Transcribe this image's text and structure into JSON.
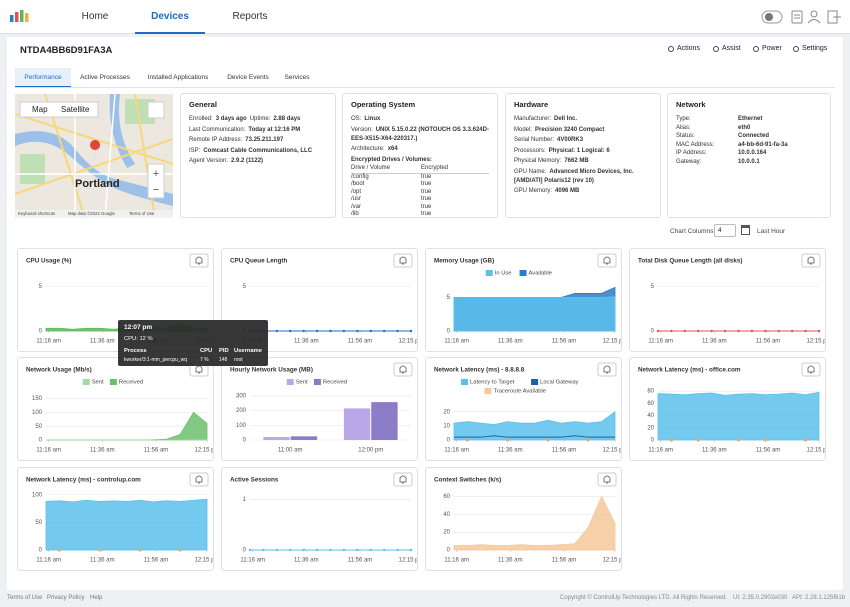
{
  "nav": {
    "tabs": [
      "Home",
      "Devices",
      "Reports"
    ],
    "active": 1
  },
  "device": {
    "name": "NTDA4BB6D91FA3A",
    "actions": [
      "Actions",
      "Assist",
      "Power",
      "Settings"
    ]
  },
  "tabs": {
    "items": [
      "Performance",
      "Active Processes",
      "Installed Applications",
      "Device Events",
      "Services"
    ],
    "active": 0
  },
  "map": {
    "buttons": [
      "Map",
      "Satellite"
    ],
    "city": "Portland",
    "attribution": [
      "Keyboard shortcuts",
      "Map data ©2022 Google",
      "Terms of Use"
    ]
  },
  "general": {
    "title": "General",
    "rows": [
      [
        "Enrolled:",
        "3 days ago",
        "Uptime:",
        "2.88 days"
      ],
      [
        "Last Communication:",
        "Today at 12:16 PM"
      ],
      [
        "Remote IP Address:",
        "73.25.211.197"
      ],
      [
        "ISP:",
        "Comcast Cable Communications, LLC"
      ],
      [
        "Agent Version:",
        "2.9.2 (1122)"
      ]
    ]
  },
  "os": {
    "title": "Operating System",
    "rows": [
      [
        "OS:",
        "Linux"
      ],
      [
        "Version:",
        "UNIX 5.15.0.22 (NOTOUCH OS 3.3.624D-EES-X515-X64-220317.)"
      ],
      [
        "Architecture:",
        "x64"
      ]
    ],
    "drives": {
      "title": "Encrypted Drives / Volumes:",
      "header": [
        "Drive / Volume",
        "Encrypted"
      ],
      "rows": [
        [
          "/config",
          "true"
        ],
        [
          "/boot",
          "true"
        ],
        [
          "/opt",
          "true"
        ],
        [
          "/usr",
          "true"
        ],
        [
          "/var",
          "true"
        ],
        [
          "/lib",
          "true"
        ],
        [
          "/etc",
          "true"
        ]
      ]
    }
  },
  "hardware": {
    "title": "Hardware",
    "rows": [
      [
        "Manufacturer:",
        "Dell Inc."
      ],
      [
        "Model:",
        "Precision 3240 Compact"
      ],
      [
        "Serial Number:",
        "4V00RK3"
      ],
      [
        "Processors:",
        "Physical: 1  Logical: 6"
      ],
      [
        "Physical Memory:",
        "7662 MB"
      ],
      [
        "GPU Name:",
        "Advanced Micro Devices, Inc. [AMD/ATI] Polaris12 (rev 10)"
      ],
      [
        "GPU Memory:",
        "4096 MB"
      ]
    ]
  },
  "network": {
    "title": "Network",
    "rows": [
      [
        "Type:",
        "Ethernet"
      ],
      [
        "Alias:",
        "eth0"
      ],
      [
        "Status:",
        "Connected"
      ],
      [
        "MAC Address:",
        "a4-bb-6d-91-fa-3a"
      ],
      [
        "IP Address:",
        "10.0.0.164"
      ],
      [
        "Gateway:",
        "10.0.0.1"
      ]
    ]
  },
  "controls": {
    "columns_label": "Chart Columns:",
    "columns": "4",
    "range": "Last Hour"
  },
  "charts": [
    {
      "type": "area",
      "title": "CPU Usage (%)",
      "ylim": [
        0,
        6.5
      ],
      "yticks": [
        0,
        5
      ],
      "xlim": [
        0,
        60
      ],
      "xticks": [
        {
          "value": 1,
          "label": "11:16 am"
        },
        {
          "value": 21,
          "label": "11:36 am"
        },
        {
          "value": 41,
          "label": "11:56 am"
        },
        {
          "value": 60,
          "label": "12:15 pm"
        }
      ],
      "x": [
        0,
        5,
        10,
        15,
        20,
        25,
        30,
        35,
        40,
        45,
        50,
        55,
        60
      ],
      "series": [
        {
          "color": "#5cb85c",
          "values": [
            0.3,
            0.3,
            0.2,
            0.3,
            0.3,
            0.2,
            0.3,
            0.3,
            0.4,
            0.3,
            0.9,
            0.3,
            0.3
          ]
        }
      ]
    },
    {
      "type": "line",
      "title": "CPU Queue Length",
      "ylim": [
        0,
        6.5
      ],
      "yticks": [
        0,
        5
      ],
      "xlim": [
        0,
        60
      ],
      "xticks": [
        {
          "value": 1,
          "label": "11:16 am"
        },
        {
          "value": 21,
          "label": "11:36 am"
        },
        {
          "value": 41,
          "label": "11:56 am"
        },
        {
          "value": 60,
          "label": "12:15 pm"
        }
      ],
      "x": [
        0,
        5,
        10,
        15,
        20,
        25,
        30,
        35,
        40,
        45,
        50,
        55,
        60
      ],
      "series": [
        {
          "color": "#1f6fbf",
          "markers": true,
          "values": [
            0,
            0,
            0,
            0,
            0,
            0,
            0,
            0,
            0,
            0,
            0,
            0,
            0
          ]
        }
      ]
    },
    {
      "type": "area",
      "title": "Memory Usage (GB)",
      "ylim": [
        0,
        7
      ],
      "yticks": [
        0,
        5
      ],
      "xlim": [
        0,
        60
      ],
      "xticks": [
        {
          "value": 1,
          "label": "11:16 am"
        },
        {
          "value": 21,
          "label": "11:36 am"
        },
        {
          "value": 41,
          "label": "11:56 am"
        },
        {
          "value": 60,
          "label": "12:15 pm"
        }
      ],
      "x": [
        0,
        5,
        10,
        15,
        20,
        25,
        30,
        35,
        40,
        45,
        50,
        55,
        60
      ],
      "series": [
        {
          "name": "In Use",
          "color": "#5bc0eb",
          "values": [
            5,
            5,
            5,
            5,
            5,
            5,
            5,
            5,
            5,
            5,
            5,
            5,
            5.1
          ]
        },
        {
          "name": "Available",
          "color": "#2a7dc9",
          "values": [
            5,
            5,
            5,
            5,
            5,
            5,
            5,
            5,
            5,
            5.6,
            5.6,
            5.6,
            6.5
          ]
        }
      ]
    },
    {
      "type": "line",
      "title": "Total Disk Queue Length (all disks)",
      "ylim": [
        0,
        6.5
      ],
      "yticks": [
        0,
        5
      ],
      "xlim": [
        0,
        60
      ],
      "xticks": [
        {
          "value": 1,
          "label": "11:16 am"
        },
        {
          "value": 21,
          "label": "11:36 am"
        },
        {
          "value": 41,
          "label": "11:56 am"
        },
        {
          "value": 60,
          "label": "12:15 pm"
        }
      ],
      "x": [
        0,
        5,
        10,
        15,
        20,
        25,
        30,
        35,
        40,
        45,
        50,
        55,
        60
      ],
      "series": [
        {
          "color": "#e0505a",
          "markers": true,
          "values": [
            0,
            0,
            0,
            0,
            0,
            0,
            0,
            0,
            0,
            0,
            0,
            0,
            0
          ]
        }
      ]
    },
    {
      "type": "area",
      "title": "Network Usage (Mb/s)",
      "ylim": [
        0,
        170
      ],
      "yticks": [
        0,
        50,
        100,
        150
      ],
      "xlim": [
        0,
        60
      ],
      "xticks": [
        {
          "value": 1,
          "label": "11:16 am"
        },
        {
          "value": 21,
          "label": "11:36 am"
        },
        {
          "value": 41,
          "label": "11:56 am"
        },
        {
          "value": 60,
          "label": "12:15 pm"
        }
      ],
      "x": [
        0,
        5,
        10,
        15,
        20,
        25,
        30,
        35,
        40,
        45,
        50,
        55,
        60
      ],
      "series": [
        {
          "name": "Sent",
          "color": "#a3d9a5",
          "values": [
            0,
            0,
            0,
            0,
            0,
            0,
            0,
            0,
            0,
            0,
            0,
            1,
            1
          ]
        },
        {
          "name": "Received",
          "color": "#6cbf6c",
          "values": [
            0,
            0,
            0,
            0,
            0,
            0,
            0,
            0,
            1,
            3,
            20,
            100,
            60
          ]
        }
      ]
    },
    {
      "type": "bar",
      "title": "Hourly Network Usage (MB)",
      "ylim": [
        0,
        320
      ],
      "yticks": [
        0,
        100,
        200,
        300
      ],
      "categories": [
        "11:00 am",
        "12:00 pm"
      ],
      "series": [
        {
          "name": "Sent",
          "color": "#b9a7e8",
          "values": [
            20,
            215
          ]
        },
        {
          "name": "Received",
          "color": "#8b7cc8",
          "values": [
            25,
            258
          ]
        }
      ]
    },
    {
      "type": "area",
      "title": "Network Latency (ms) - 8.8.8.8",
      "ylim": [
        0,
        27
      ],
      "yticks": [
        0,
        10,
        20
      ],
      "xlim": [
        0,
        60
      ],
      "xticks": [
        {
          "value": 1,
          "label": "11:16 am"
        },
        {
          "value": 21,
          "label": "11:36 am"
        },
        {
          "value": 41,
          "label": "11:56 am"
        },
        {
          "value": 60,
          "label": "12:15 pm"
        }
      ],
      "x": [
        0,
        5,
        10,
        15,
        20,
        25,
        30,
        35,
        40,
        45,
        50,
        55,
        60
      ],
      "series": [
        {
          "name": "Latency to Target",
          "color": "#5bc0eb",
          "values": [
            12,
            13,
            12,
            11,
            13,
            12,
            12,
            14,
            12,
            13,
            12,
            13,
            20
          ]
        },
        {
          "name": "Local Gateway",
          "color": "#1f5fa8",
          "kind": "line",
          "values": [
            2,
            2,
            2,
            3,
            2,
            2,
            2,
            2,
            2,
            3,
            2,
            2,
            2
          ]
        },
        {
          "name": "Traceroute Available",
          "color": "#f5c89a",
          "kind": "points",
          "values": [
            null,
            0,
            null,
            null,
            0,
            null,
            null,
            0,
            null,
            null,
            0,
            null,
            null
          ]
        }
      ]
    },
    {
      "type": "area",
      "title": "Network Latency (ms) - office.com",
      "ylim": [
        0,
        95
      ],
      "yticks": [
        0,
        20,
        40,
        60,
        80
      ],
      "xlim": [
        0,
        60
      ],
      "xticks": [
        {
          "value": 1,
          "label": "11:16 am"
        },
        {
          "value": 21,
          "label": "11:36 am"
        },
        {
          "value": 41,
          "label": "11:56 am"
        },
        {
          "value": 60,
          "label": "12:15 pm"
        }
      ],
      "x": [
        0,
        5,
        10,
        15,
        20,
        25,
        30,
        35,
        40,
        45,
        50,
        55,
        60
      ],
      "series": [
        {
          "color": "#5bc0eb",
          "values": [
            76,
            75,
            74,
            76,
            77,
            73,
            75,
            76,
            74,
            75,
            77,
            74,
            78
          ]
        },
        {
          "color": "#f5c89a",
          "kind": "points",
          "values": [
            null,
            0,
            null,
            0,
            null,
            null,
            0,
            null,
            0,
            null,
            null,
            0,
            null
          ]
        }
      ]
    },
    {
      "type": "area",
      "title": "Network Latency (ms) - controlup.com",
      "ylim": [
        0,
        105
      ],
      "yticks": [
        0,
        50,
        100
      ],
      "xlim": [
        0,
        60
      ],
      "xticks": [
        {
          "value": 1,
          "label": "11:16 am"
        },
        {
          "value": 21,
          "label": "11:36 am"
        },
        {
          "value": 41,
          "label": "11:56 am"
        },
        {
          "value": 60,
          "label": "12:15 pm"
        }
      ],
      "x": [
        0,
        5,
        10,
        15,
        20,
        25,
        30,
        35,
        40,
        45,
        50,
        55,
        60
      ],
      "series": [
        {
          "color": "#5bc0eb",
          "values": [
            88,
            89,
            87,
            90,
            88,
            89,
            88,
            90,
            87,
            89,
            88,
            90,
            92
          ]
        },
        {
          "color": "#f5c89a",
          "kind": "points",
          "values": [
            null,
            0,
            null,
            null,
            0,
            null,
            null,
            0,
            null,
            null,
            0,
            null,
            null
          ]
        }
      ]
    },
    {
      "type": "line",
      "title": "Active Sessions",
      "ylim": [
        0,
        1.15
      ],
      "yticks": [
        0,
        1
      ],
      "xlim": [
        0,
        60
      ],
      "xticks": [
        {
          "value": 1,
          "label": "11:16 am"
        },
        {
          "value": 21,
          "label": "11:36 am"
        },
        {
          "value": 41,
          "label": "11:56 am"
        },
        {
          "value": 60,
          "label": "12:15 pm"
        }
      ],
      "x": [
        0,
        5,
        10,
        15,
        20,
        25,
        30,
        35,
        40,
        45,
        50,
        55,
        60
      ],
      "series": [
        {
          "color": "#5bc0eb",
          "markers": true,
          "values": [
            0,
            0,
            0,
            0,
            0,
            0,
            0,
            0,
            0,
            0,
            0,
            0,
            0
          ]
        }
      ]
    },
    {
      "type": "area",
      "title": "Context Switches (k/s)",
      "ylim": [
        0,
        65
      ],
      "yticks": [
        0,
        20,
        40,
        60
      ],
      "xlim": [
        0,
        60
      ],
      "xticks": [
        {
          "value": 1,
          "label": "11:16 am"
        },
        {
          "value": 21,
          "label": "11:36 am"
        },
        {
          "value": 41,
          "label": "11:56 am"
        },
        {
          "value": 60,
          "label": "12:15 pm"
        }
      ],
      "x": [
        0,
        5,
        10,
        15,
        20,
        25,
        30,
        35,
        40,
        45,
        50,
        55,
        60
      ],
      "series": [
        {
          "color": "#f5c89a",
          "values": [
            5,
            5,
            6,
            5,
            5,
            6,
            5,
            5,
            6,
            7,
            25,
            60,
            30
          ]
        }
      ]
    }
  ],
  "tooltip": {
    "time": "12:07 pm",
    "summary": "CPU: 12 %",
    "header": [
      "Process",
      "CPU",
      "PID",
      "Username"
    ],
    "row": [
      "kworker/3:1-mm_percpu_wq",
      "7 %",
      "148",
      "root"
    ]
  },
  "footer": {
    "links": [
      "Terms of Use",
      "Privacy Policy",
      "Help"
    ],
    "copyright": "Copyright © ControlUp Technologies LTD. All Rights Reserved.",
    "ui": "UI: 2.35.0.2902e030",
    "api": "API: 2.28.1.125f61b"
  }
}
